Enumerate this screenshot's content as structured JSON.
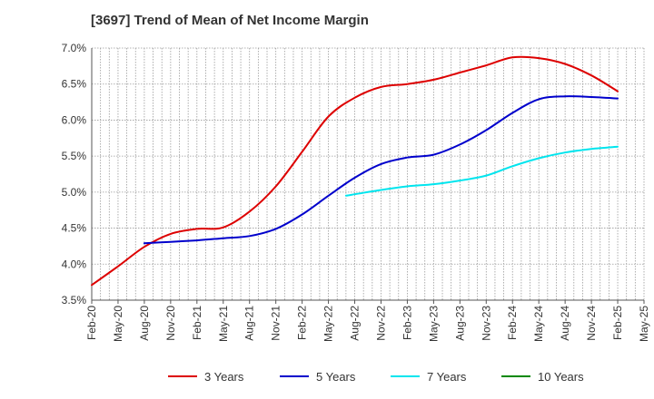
{
  "chart_data": {
    "type": "line",
    "title": "[3697]  Trend of Mean of Net Income Margin",
    "xlabel": "",
    "ylabel": "",
    "x_ticks": [
      "Feb-20",
      "May-20",
      "Aug-20",
      "Nov-20",
      "Feb-21",
      "May-21",
      "Aug-21",
      "Nov-21",
      "Feb-22",
      "May-22",
      "Aug-22",
      "Nov-22",
      "Feb-23",
      "May-23",
      "Aug-23",
      "Nov-23",
      "Feb-24",
      "May-24",
      "Aug-24",
      "Nov-24",
      "Feb-25",
      "May-25"
    ],
    "y_ticks": [
      "3.5%",
      "4.0%",
      "4.5%",
      "5.0%",
      "5.5%",
      "6.0%",
      "6.5%",
      "7.0%"
    ],
    "ylim": [
      3.5,
      7.0
    ],
    "grid": true,
    "legend_position": "bottom",
    "series": [
      {
        "name": "3 Years",
        "color": "#dd0000",
        "points": [
          [
            "Feb-20",
            3.71
          ],
          [
            "May-20",
            3.97
          ],
          [
            "Aug-20",
            4.24
          ],
          [
            "Nov-20",
            4.42
          ],
          [
            "Feb-21",
            4.49
          ],
          [
            "May-21",
            4.51
          ],
          [
            "Aug-21",
            4.73
          ],
          [
            "Nov-21",
            5.08
          ],
          [
            "Feb-22",
            5.56
          ],
          [
            "May-22",
            6.05
          ],
          [
            "Aug-22",
            6.31
          ],
          [
            "Nov-22",
            6.46
          ],
          [
            "Feb-23",
            6.5
          ],
          [
            "May-23",
            6.56
          ],
          [
            "Aug-23",
            6.66
          ],
          [
            "Nov-23",
            6.76
          ],
          [
            "Feb-24",
            6.87
          ],
          [
            "May-24",
            6.86
          ],
          [
            "Aug-24",
            6.78
          ],
          [
            "Nov-24",
            6.62
          ],
          [
            "Feb-25",
            6.4
          ]
        ]
      },
      {
        "name": "5 Years",
        "color": "#0000cc",
        "points": [
          [
            "Aug-20",
            4.29
          ],
          [
            "Nov-20",
            4.31
          ],
          [
            "Feb-21",
            4.33
          ],
          [
            "May-21",
            4.36
          ],
          [
            "Aug-21",
            4.39
          ],
          [
            "Nov-21",
            4.49
          ],
          [
            "Feb-22",
            4.69
          ],
          [
            "May-22",
            4.95
          ],
          [
            "Aug-22",
            5.2
          ],
          [
            "Nov-22",
            5.39
          ],
          [
            "Feb-23",
            5.48
          ],
          [
            "May-23",
            5.52
          ],
          [
            "Aug-23",
            5.66
          ],
          [
            "Nov-23",
            5.86
          ],
          [
            "Feb-24",
            6.1
          ],
          [
            "May-24",
            6.29
          ],
          [
            "Aug-24",
            6.33
          ],
          [
            "Nov-24",
            6.32
          ],
          [
            "Feb-25",
            6.3
          ]
        ]
      },
      {
        "name": "7 Years",
        "color": "#00e5ee",
        "points": [
          [
            "Jul-22",
            4.95
          ],
          [
            "Aug-22",
            4.97
          ],
          [
            "Nov-22",
            5.03
          ],
          [
            "Feb-23",
            5.08
          ],
          [
            "May-23",
            5.11
          ],
          [
            "Aug-23",
            5.16
          ],
          [
            "Nov-23",
            5.23
          ],
          [
            "Feb-24",
            5.36
          ],
          [
            "May-24",
            5.47
          ],
          [
            "Aug-24",
            5.55
          ],
          [
            "Nov-24",
            5.6
          ],
          [
            "Feb-25",
            5.63
          ]
        ]
      },
      {
        "name": "10 Years",
        "color": "#008800",
        "points": []
      }
    ]
  }
}
